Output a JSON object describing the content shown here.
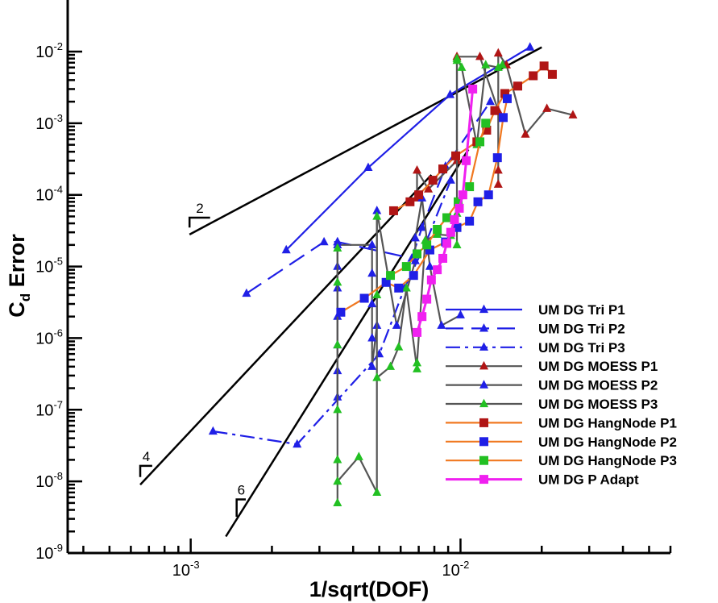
{
  "chart_data": {
    "type": "line",
    "xlabel": "1/sqrt(DOF)",
    "ylabel": "C_d Error",
    "x_scale": "log",
    "y_scale": "log",
    "xlim": [
      0.00035,
      0.06
    ],
    "ylim": [
      1e-09,
      0.01
    ],
    "x_ticks": [
      {
        "value": 0.001,
        "base": "10",
        "exp": "-3"
      },
      {
        "value": 0.01,
        "base": "10",
        "exp": "-2"
      }
    ],
    "y_ticks": [
      {
        "value": 1e-09,
        "base": "10",
        "exp": "-9"
      },
      {
        "value": 1e-08,
        "base": "10",
        "exp": "-8"
      },
      {
        "value": 1e-07,
        "base": "10",
        "exp": "-7"
      },
      {
        "value": 1e-06,
        "base": "10",
        "exp": "-6"
      },
      {
        "value": 1e-05,
        "base": "10",
        "exp": "-5"
      },
      {
        "value": 0.0001,
        "base": "10",
        "exp": "-4"
      },
      {
        "value": 0.001,
        "base": "10",
        "exp": "-3"
      },
      {
        "value": 0.01,
        "base": "10",
        "exp": "-2"
      }
    ],
    "grid": false,
    "legend_position": "bottom-right",
    "series": [
      {
        "name": "UM DG Tri P1",
        "color": "#1f1fe6",
        "dash": "solid",
        "marker": "triangle",
        "width": 2.2,
        "points": [
          [
            0.00226,
            1.7e-05
          ],
          [
            0.00455,
            0.00024
          ],
          [
            0.00915,
            0.0025
          ],
          [
            0.0181,
            0.0115
          ]
        ]
      },
      {
        "name": "UM DG Tri P2",
        "color": "#1f1fe6",
        "dash": "dash",
        "marker": "triangle",
        "width": 2.2,
        "points": [
          [
            0.00161,
            4.2e-06
          ],
          [
            0.00312,
            2.2e-05
          ],
          [
            0.0035,
            2.2e-05
          ],
          [
            0.0066,
            1.3e-05
          ],
          [
            0.0072,
            3.5e-05
          ],
          [
            0.0088,
            0.00025
          ],
          [
            0.0129,
            0.002
          ]
        ]
      },
      {
        "name": "UM DG Tri P3",
        "color": "#1f1fe6",
        "dash": "dashdot",
        "marker": "triangle",
        "width": 2.2,
        "points": [
          [
            0.00121,
            5e-08
          ],
          [
            0.00248,
            3.3e-08
          ],
          [
            0.005,
            6e-07
          ],
          [
            0.0062,
            5e-06
          ],
          [
            0.0075,
            2.3e-05
          ],
          [
            0.0092,
            0.00016
          ]
        ]
      },
      {
        "name": "UM DG MOESS P1",
        "color": "#555555",
        "dash": "solid",
        "marker": "triangle",
        "marker_color": "#b01515",
        "width": 2.2,
        "points": [
          [
            0.0069,
            9e-05
          ],
          [
            0.0069,
            0.00022
          ],
          [
            0.0076,
            0.00012
          ],
          [
            0.0097,
            0.0003
          ],
          [
            0.0097,
            0.0085
          ],
          [
            0.0118,
            0.0085
          ],
          [
            0.0138,
            0.0015
          ],
          [
            0.0138,
            0.00022
          ],
          [
            0.0138,
            0.00014
          ],
          [
            0.0138,
            0.0095
          ],
          [
            0.0148,
            0.0065
          ],
          [
            0.0174,
            0.0007
          ],
          [
            0.0209,
            0.0016
          ],
          [
            0.0261,
            0.0013
          ]
        ]
      },
      {
        "name": "UM DG MOESS P2",
        "color": "#555555",
        "dash": "solid",
        "marker": "triangle",
        "marker_color": "#1f1fe6",
        "width": 2.2,
        "points": [
          [
            0.0035,
            2.2e-05
          ],
          [
            0.0035,
            1e-05
          ],
          [
            0.0035,
            5e-06
          ],
          [
            0.0035,
            2e-06
          ],
          [
            0.0035,
            8e-07
          ],
          [
            0.0035,
            3.5e-07
          ],
          [
            0.0035,
            1.5e-07
          ],
          [
            0.0035,
            2e-05
          ],
          [
            0.0047,
            2e-05
          ],
          [
            0.0047,
            8e-06
          ],
          [
            0.0047,
            3e-06
          ],
          [
            0.0047,
            1e-06
          ],
          [
            0.0047,
            4e-07
          ],
          [
            0.0049,
            1.5e-06
          ],
          [
            0.0049,
            6e-05
          ],
          [
            0.0058,
            1.5e-06
          ],
          [
            0.0068,
            1.2e-05
          ],
          [
            0.0068,
            2.5e-05
          ],
          [
            0.0072,
            9e-05
          ],
          [
            0.0077,
            1e-05
          ],
          [
            0.0085,
            1.5e-06
          ],
          [
            0.01,
            2.1e-06
          ]
        ]
      },
      {
        "name": "UM DG MOESS P3",
        "color": "#555555",
        "dash": "solid",
        "marker": "triangle",
        "marker_color": "#22c022",
        "width": 2.2,
        "points": [
          [
            0.0035,
            5e-09
          ],
          [
            0.0035,
            1.8e-05
          ],
          [
            0.0035,
            6e-06
          ],
          [
            0.0035,
            8e-07
          ],
          [
            0.0035,
            1e-07
          ],
          [
            0.0035,
            2e-08
          ],
          [
            0.0035,
            1e-08
          ],
          [
            0.0042,
            2.2e-08
          ],
          [
            0.0049,
            7e-09
          ],
          [
            0.0049,
            5e-05
          ],
          [
            0.0049,
            4e-06
          ],
          [
            0.0049,
            2.8e-07
          ],
          [
            0.0055,
            4e-07
          ],
          [
            0.0059,
            7.5e-07
          ],
          [
            0.0063,
            5e-06
          ],
          [
            0.0069,
            3.7e-07
          ],
          [
            0.0069,
            4.5e-07
          ],
          [
            0.0074,
            2.3e-05
          ],
          [
            0.0082,
            2.8e-05
          ],
          [
            0.0092,
            2.7e-05
          ],
          [
            0.0097,
            5.5e-05
          ],
          [
            0.0097,
            2e-05
          ],
          [
            0.0097,
            0.0075
          ],
          [
            0.0097,
            0.008
          ],
          [
            0.0101,
            0.006
          ],
          [
            0.0115,
            0.0005
          ],
          [
            0.0124,
            0.0065
          ],
          [
            0.0138,
            0.006
          ],
          [
            0.0143,
            0.0065
          ]
        ]
      },
      {
        "name": "UM DG HangNode P1",
        "color": "#f07820",
        "dash": "solid",
        "marker": "square",
        "marker_color": "#b01515",
        "width": 2.2,
        "points": [
          [
            0.00565,
            6e-05
          ],
          [
            0.0065,
            8e-05
          ],
          [
            0.007,
            0.0001
          ],
          [
            0.0079,
            0.00016
          ],
          [
            0.0086,
            0.00023
          ],
          [
            0.0096,
            0.00035
          ],
          [
            0.0115,
            0.00055
          ],
          [
            0.0125,
            0.0008
          ],
          [
            0.0134,
            0.0015
          ],
          [
            0.0146,
            0.0026
          ],
          [
            0.0163,
            0.0033
          ],
          [
            0.0186,
            0.0046
          ],
          [
            0.0204,
            0.0063
          ],
          [
            0.0219,
            0.0048
          ]
        ]
      },
      {
        "name": "UM DG HangNode P2",
        "color": "#f07820",
        "dash": "solid",
        "marker": "square",
        "marker_color": "#1f1fe6",
        "width": 2.2,
        "points": [
          [
            0.0036,
            2.3e-06
          ],
          [
            0.0044,
            3.6e-06
          ],
          [
            0.0053,
            6e-06
          ],
          [
            0.0059,
            5e-06
          ],
          [
            0.0067,
            7.5e-06
          ],
          [
            0.0077,
            1.7e-05
          ],
          [
            0.0088,
            2.2e-05
          ],
          [
            0.0097,
            3.5e-05
          ],
          [
            0.0108,
            4.3e-05
          ],
          [
            0.0116,
            8e-05
          ],
          [
            0.0127,
            0.0001
          ],
          [
            0.0137,
            0.00033
          ],
          [
            0.0144,
            0.0012
          ],
          [
            0.0149,
            0.0022
          ]
        ]
      },
      {
        "name": "UM DG HangNode P3",
        "color": "#f07820",
        "dash": "solid",
        "marker": "square",
        "marker_color": "#22c022",
        "width": 2.2,
        "points": [
          [
            0.0055,
            7.5e-06
          ],
          [
            0.0063,
            1e-05
          ],
          [
            0.0069,
            1.5e-05
          ],
          [
            0.0075,
            2e-05
          ],
          [
            0.0082,
            3.3e-05
          ],
          [
            0.0089,
            4.8e-05
          ],
          [
            0.0098,
            8e-05
          ],
          [
            0.0108,
            0.00013
          ],
          [
            0.0118,
            0.00055
          ],
          [
            0.0124,
            0.001
          ]
        ]
      },
      {
        "name": "UM DG P Adapt",
        "color": "#f020f0",
        "dash": "solid",
        "marker": "square",
        "marker_color": "#f020f0",
        "width": 3,
        "points": [
          [
            0.0069,
            1.2e-06
          ],
          [
            0.0072,
            2e-06
          ],
          [
            0.0075,
            3.5e-06
          ],
          [
            0.0078,
            6.5e-06
          ],
          [
            0.0082,
            9e-06
          ],
          [
            0.0086,
            1.3e-05
          ],
          [
            0.0089,
            2.1e-05
          ],
          [
            0.0092,
            3e-05
          ],
          [
            0.0095,
            4.5e-05
          ],
          [
            0.0099,
            6.5e-05
          ],
          [
            0.0102,
            0.0001
          ],
          [
            0.0105,
            0.0003
          ],
          [
            0.0111,
            0.003
          ]
        ]
      }
    ],
    "reference_lines": [
      {
        "order": "2",
        "from": [
          0.00099,
          2.8e-05
        ],
        "to": [
          0.02,
          0.0115
        ],
        "triangle": [
          [
            0.00099,
            3.5e-05
          ],
          [
            0.00118,
            4.8e-05
          ]
        ]
      },
      {
        "order": "4",
        "from": [
          0.00065,
          9e-09
        ],
        "to": [
          0.0078,
          0.00019
        ],
        "triangle": [
          [
            0.00065,
            1.15e-08
          ],
          [
            0.00072,
            1.65e-08
          ]
        ]
      },
      {
        "order": "6",
        "from": [
          0.00135,
          1.7e-09
        ],
        "to": [
          0.0107,
          0.00043
        ],
        "triangle": [
          [
            0.00148,
            3.2e-09
          ],
          [
            0.0016,
            5.6e-09
          ]
        ]
      }
    ]
  }
}
